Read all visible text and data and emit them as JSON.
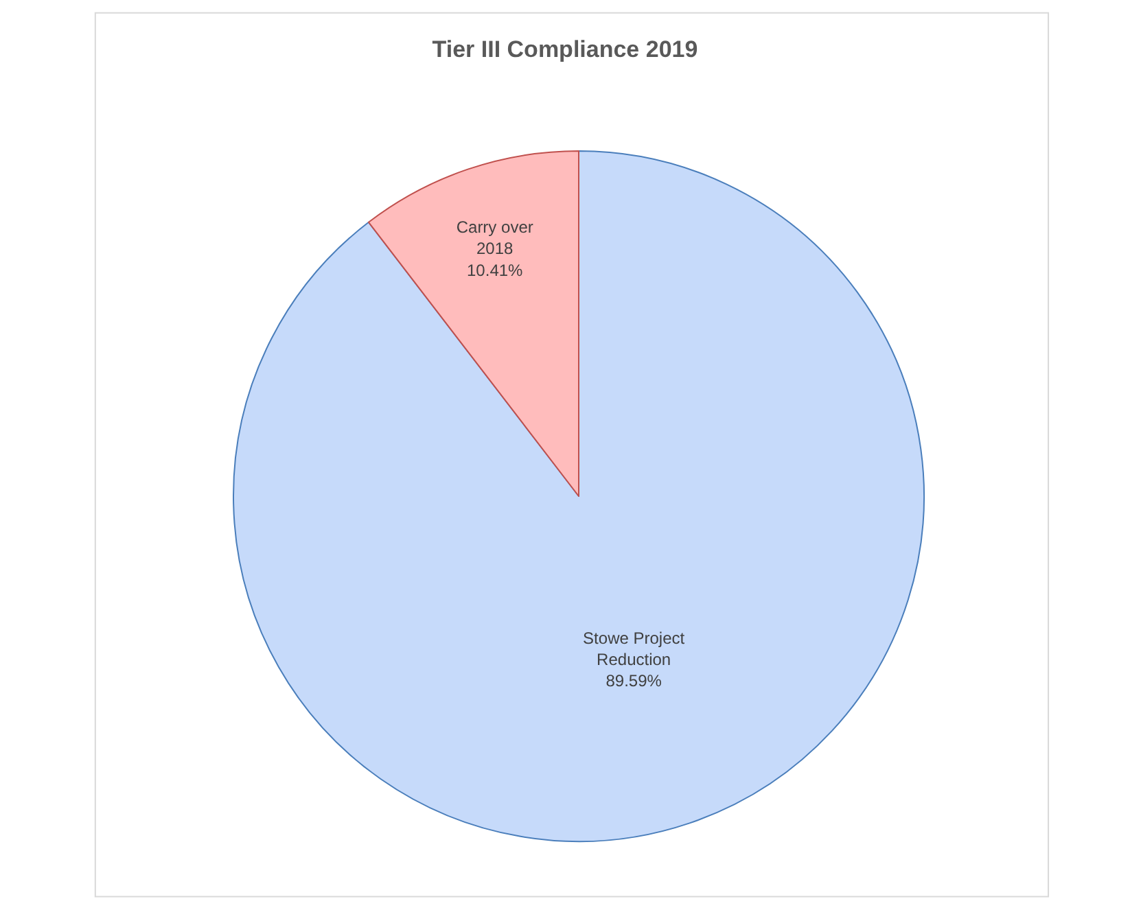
{
  "chart_data": {
    "type": "pie",
    "title": "Tier III Compliance 2019",
    "categories": [
      "Stowe Project Reduction",
      "Carry over 2018"
    ],
    "values": [
      89.59,
      10.41
    ],
    "colors": [
      "#c6dafa",
      "#ffbcbc"
    ],
    "value_labels": [
      "89.59%",
      "10.41%"
    ],
    "legend": false
  }
}
